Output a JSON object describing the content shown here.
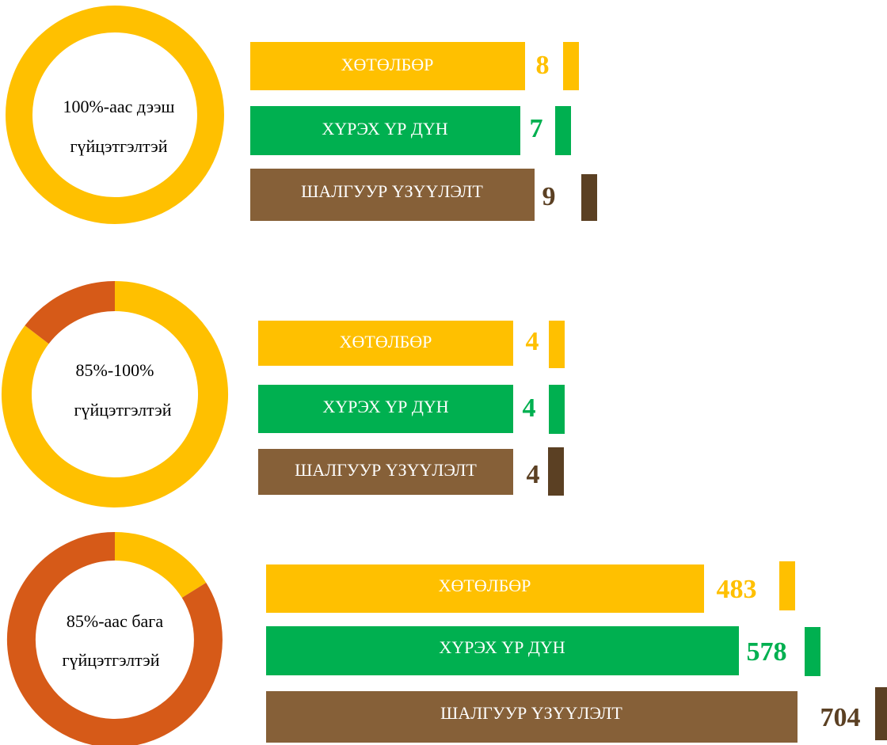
{
  "sections": [
    {
      "label_lines": [
        "100%-аас дээш",
        "гүйцэтгэлтэй"
      ],
      "bars": [
        {
          "label": "ХӨТӨЛБӨР",
          "value": 8
        },
        {
          "label": "ХҮРЭХ ҮР ДҮН",
          "value": 7
        },
        {
          "label": "ШАЛГУУР ҮЗҮҮЛЭЛТ",
          "value": 9
        }
      ]
    },
    {
      "label_lines": [
        "85%-100%",
        "гүйцэтгэлтэй"
      ],
      "bars": [
        {
          "label": "ХӨТӨЛБӨР",
          "value": 4
        },
        {
          "label": "ХҮРЭХ ҮР ДҮН",
          "value": 4
        },
        {
          "label": "ШАЛГУУР ҮЗҮҮЛЭЛТ",
          "value": 4
        }
      ]
    },
    {
      "label_lines": [
        "85%-аас бага",
        "гүйцэтгэлтэй"
      ],
      "bars": [
        {
          "label": "ХӨТӨЛБӨР",
          "value": 483
        },
        {
          "label": "ХҮРЭХ ҮР ДҮН",
          "value": 578
        },
        {
          "label": "ШАЛГУУР ҮЗҮҮЛЭЛТ",
          "value": 704
        }
      ]
    }
  ]
}
